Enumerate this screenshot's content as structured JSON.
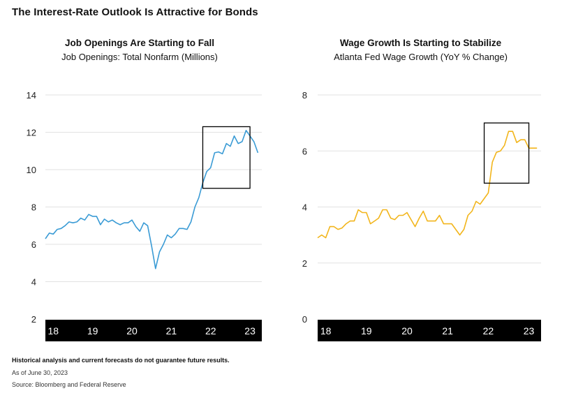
{
  "title": "The Interest-Rate Outlook Is Attractive for Bonds",
  "footer": {
    "note": "Historical analysis and current forecasts do not guarantee future results.",
    "as_of": "As of June 30, 2023",
    "source": "Source: Bloomberg and Federal Reserve"
  },
  "colors": {
    "left_line": "#3a9bd5",
    "right_line": "#f2b51b",
    "axis_band": "#000000",
    "highlight_box": "#000000"
  },
  "chart_data": [
    {
      "type": "line",
      "title": "Job Openings Are Starting to Fall",
      "subtitle": "Job Openings: Total Nonfarm (Millions)",
      "ylim": [
        2,
        14
      ],
      "yticks": [
        2,
        4,
        6,
        8,
        10,
        12,
        14
      ],
      "xlim": [
        2018.0,
        2023.5
      ],
      "xticks": [
        {
          "label": "18",
          "value": 2018.2
        },
        {
          "label": "19",
          "value": 2019.2
        },
        {
          "label": "20",
          "value": 2020.2
        },
        {
          "label": "21",
          "value": 2021.2
        },
        {
          "label": "22",
          "value": 2022.2
        },
        {
          "label": "23",
          "value": 2023.2
        }
      ],
      "grid": "horizontal",
      "highlight": {
        "x": [
          2022.0,
          2023.2
        ],
        "y": [
          9.0,
          12.3
        ]
      },
      "series": [
        {
          "x": [
            2018.0,
            2018.1,
            2018.2,
            2018.3,
            2018.4,
            2018.5,
            2018.6,
            2018.7,
            2018.8,
            2018.9,
            2019.0,
            2019.1,
            2019.2,
            2019.3,
            2019.4,
            2019.5,
            2019.6,
            2019.7,
            2019.8,
            2019.9,
            2020.0,
            2020.1,
            2020.2,
            2020.3,
            2020.4,
            2020.5,
            2020.6,
            2020.7,
            2020.8,
            2020.9,
            2021.0,
            2021.1,
            2021.2,
            2021.3,
            2021.4,
            2021.5,
            2021.6,
            2021.7,
            2021.8,
            2021.9,
            2022.0,
            2022.1,
            2022.2,
            2022.3,
            2022.4,
            2022.5,
            2022.6,
            2022.7,
            2022.8,
            2022.9,
            2023.0,
            2023.1,
            2023.2,
            2023.3,
            2023.4
          ],
          "y": [
            6.3,
            6.6,
            6.55,
            6.8,
            6.85,
            7.0,
            7.2,
            7.15,
            7.2,
            7.4,
            7.3,
            7.6,
            7.5,
            7.5,
            7.05,
            7.35,
            7.2,
            7.3,
            7.15,
            7.05,
            7.15,
            7.15,
            7.3,
            6.95,
            6.7,
            7.15,
            7.0,
            5.9,
            4.7,
            5.6,
            6.0,
            6.5,
            6.35,
            6.55,
            6.85,
            6.85,
            6.8,
            7.2,
            8.0,
            8.5,
            9.3,
            9.9,
            10.1,
            10.9,
            10.95,
            10.85,
            11.4,
            11.25,
            11.8,
            11.4,
            11.5,
            12.1,
            11.8,
            11.5,
            10.9
          ]
        }
      ]
    },
    {
      "type": "line",
      "title": "Wage Growth Is Starting to Stabilize",
      "subtitle": "Atlanta Fed Wage Growth (YoY % Change)",
      "ylim": [
        0,
        8
      ],
      "yticks": [
        0,
        2,
        4,
        6,
        8
      ],
      "xlim": [
        2018.0,
        2023.5
      ],
      "xticks": [
        {
          "label": "18",
          "value": 2018.2
        },
        {
          "label": "19",
          "value": 2019.2
        },
        {
          "label": "20",
          "value": 2020.2
        },
        {
          "label": "21",
          "value": 2021.2
        },
        {
          "label": "22",
          "value": 2022.2
        },
        {
          "label": "23",
          "value": 2023.2
        }
      ],
      "grid": "horizontal",
      "highlight": {
        "x": [
          2022.1,
          2023.2
        ],
        "y": [
          4.85,
          7.0
        ]
      },
      "series": [
        {
          "x": [
            2018.0,
            2018.1,
            2018.2,
            2018.3,
            2018.4,
            2018.5,
            2018.6,
            2018.7,
            2018.8,
            2018.9,
            2019.0,
            2019.1,
            2019.2,
            2019.3,
            2019.4,
            2019.5,
            2019.6,
            2019.7,
            2019.8,
            2019.9,
            2020.0,
            2020.1,
            2020.2,
            2020.3,
            2020.4,
            2020.5,
            2020.6,
            2020.7,
            2020.8,
            2020.9,
            2021.0,
            2021.1,
            2021.2,
            2021.3,
            2021.4,
            2021.5,
            2021.6,
            2021.7,
            2021.8,
            2021.9,
            2022.0,
            2022.1,
            2022.2,
            2022.3,
            2022.4,
            2022.5,
            2022.6,
            2022.7,
            2022.8,
            2022.9,
            2023.0,
            2023.1,
            2023.2,
            2023.3,
            2023.4
          ],
          "y": [
            2.9,
            3.0,
            2.9,
            3.3,
            3.3,
            3.2,
            3.25,
            3.4,
            3.5,
            3.5,
            3.9,
            3.8,
            3.8,
            3.4,
            3.5,
            3.6,
            3.9,
            3.9,
            3.6,
            3.55,
            3.7,
            3.7,
            3.8,
            3.55,
            3.3,
            3.6,
            3.85,
            3.5,
            3.5,
            3.5,
            3.7,
            3.4,
            3.4,
            3.4,
            3.2,
            3.0,
            3.2,
            3.7,
            3.85,
            4.2,
            4.1,
            4.3,
            4.5,
            5.6,
            5.95,
            6.0,
            6.2,
            6.7,
            6.7,
            6.3,
            6.4,
            6.4,
            6.1,
            6.1,
            6.1
          ]
        }
      ]
    }
  ]
}
